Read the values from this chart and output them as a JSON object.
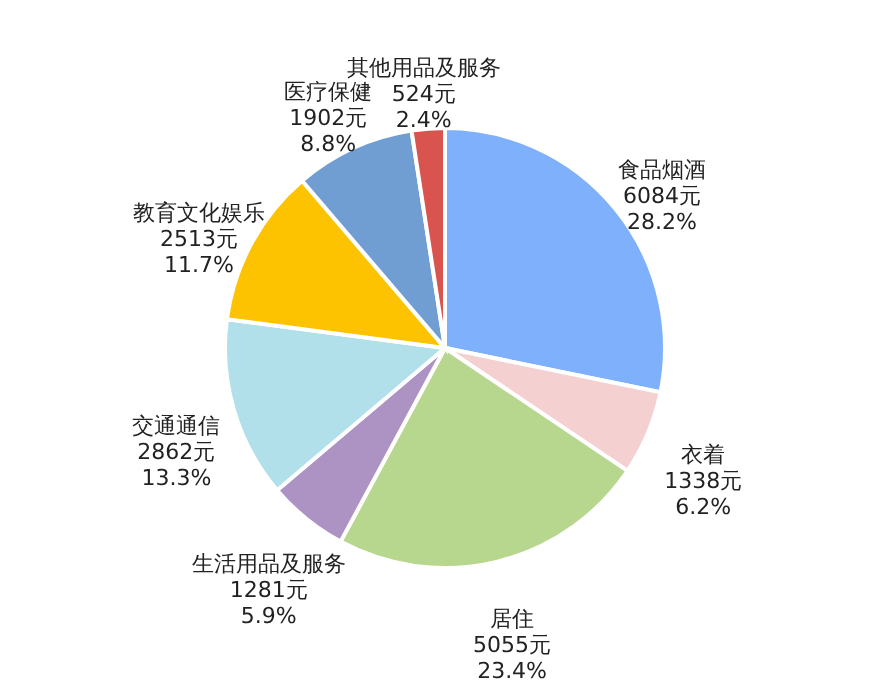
{
  "chart_data": {
    "type": "pie",
    "categories": [
      "食品烟酒",
      "衣着",
      "居住",
      "生活用品及服务",
      "交通通信",
      "教育文化娱乐",
      "医疗保健",
      "其他用品及服务"
    ],
    "values": [
      6084,
      1338,
      5055,
      1281,
      2862,
      2513,
      1902,
      524
    ],
    "colors": [
      "#7fb0fb",
      "#f4d0d0",
      "#b7d78e",
      "#ad92c4",
      "#b1dfea",
      "#fdc300",
      "#709dd2",
      "#d9534f"
    ],
    "value_labels": [
      "6084元\n28.2%",
      "1338元\n6.2%",
      "5055元\n23.4%",
      "1281元\n5.9%",
      "2862元\n13.3%",
      "2513元\n11.7%",
      "1902元\n8.8%",
      "524元\n2.4%"
    ]
  }
}
